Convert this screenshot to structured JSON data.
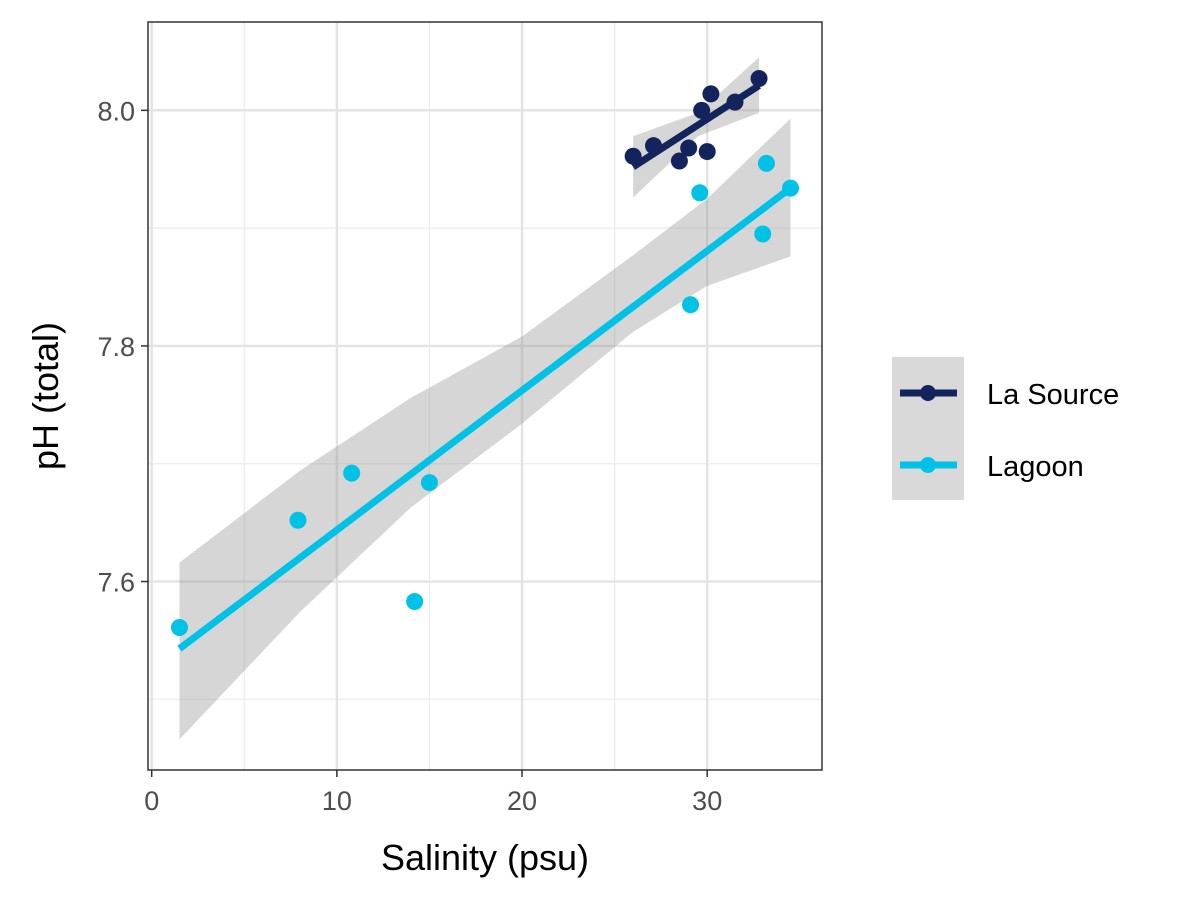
{
  "chart_data": {
    "type": "scatter",
    "xlabel": "Salinity (psu)",
    "ylabel": "pH (total)",
    "xlim": [
      -0.2,
      36.2
    ],
    "ylim": [
      7.44,
      8.075
    ],
    "x_ticks": [
      0,
      10,
      20,
      30
    ],
    "x_tick_labels": [
      "0",
      "10",
      "20",
      "30"
    ],
    "y_ticks": [
      7.6,
      7.8,
      8.0
    ],
    "y_tick_labels": [
      "7.6",
      "7.8",
      "8.0"
    ],
    "grid": true,
    "legend_position": "right",
    "series": [
      {
        "name": "La Source",
        "color": "#13235b",
        "points": [
          {
            "x": 26.0,
            "y": 7.961
          },
          {
            "x": 27.1,
            "y": 7.97
          },
          {
            "x": 28.5,
            "y": 7.957
          },
          {
            "x": 29.0,
            "y": 7.968
          },
          {
            "x": 29.7,
            "y": 8.0
          },
          {
            "x": 30.0,
            "y": 7.965
          },
          {
            "x": 30.2,
            "y": 8.014
          },
          {
            "x": 31.5,
            "y": 8.007
          },
          {
            "x": 32.8,
            "y": 8.027
          }
        ],
        "fit": {
          "x": [
            26.0,
            32.8
          ],
          "y": [
            7.952,
            8.021
          ]
        },
        "band": {
          "x": [
            26.0,
            29.5,
            32.8
          ],
          "lower": [
            7.926,
            7.978,
            7.998
          ],
          "upper": [
            7.978,
            7.998,
            8.045
          ]
        }
      },
      {
        "name": "Lagoon",
        "color": "#00c2e6",
        "points": [
          {
            "x": 1.5,
            "y": 7.561
          },
          {
            "x": 7.9,
            "y": 7.652
          },
          {
            "x": 10.8,
            "y": 7.692
          },
          {
            "x": 14.2,
            "y": 7.583
          },
          {
            "x": 15.0,
            "y": 7.684
          },
          {
            "x": 29.1,
            "y": 7.835
          },
          {
            "x": 29.6,
            "y": 7.93
          },
          {
            "x": 33.0,
            "y": 7.895
          },
          {
            "x": 33.2,
            "y": 7.955
          },
          {
            "x": 34.5,
            "y": 7.934
          }
        ],
        "fit": {
          "x": [
            1.5,
            34.5
          ],
          "y": [
            7.543,
            7.934
          ]
        },
        "band": {
          "x": [
            1.5,
            8,
            14,
            20,
            26,
            30,
            34.5
          ],
          "lower": [
            7.466,
            7.574,
            7.663,
            7.734,
            7.812,
            7.851,
            7.876
          ],
          "upper": [
            7.616,
            7.694,
            7.756,
            7.808,
            7.877,
            7.925,
            7.993
          ]
        }
      }
    ]
  }
}
